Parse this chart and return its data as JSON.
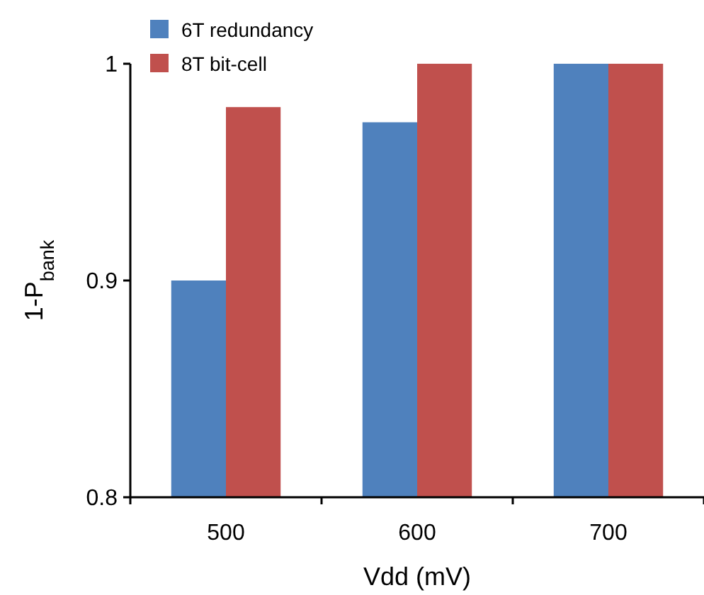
{
  "chart_data": {
    "type": "bar",
    "xlabel": "Vdd (mV)",
    "ylabel": "1-P$_{bank}$",
    "categories": [
      "500",
      "600",
      "700"
    ],
    "series": [
      {
        "name": "6T redundancy",
        "color": "#4f81bd",
        "values": [
          0.9,
          0.973,
          1
        ]
      },
      {
        "name": "8T bit-cell",
        "color": "#c0504d",
        "values": [
          0.98,
          1,
          1
        ]
      }
    ],
    "ylim": [
      0.8,
      1
    ],
    "yticks": [
      0.8,
      0.9,
      1
    ],
    "legend": "top left",
    "grid": false
  }
}
